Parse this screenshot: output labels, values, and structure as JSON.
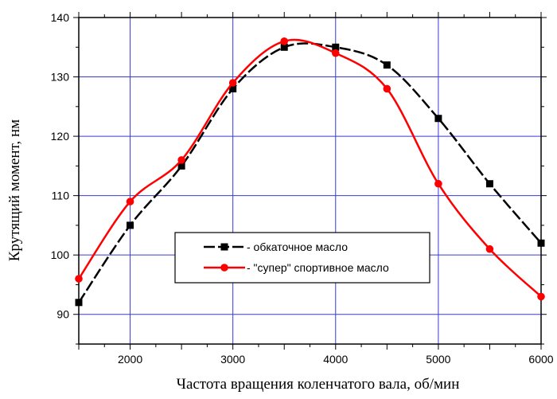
{
  "chart_data": {
    "type": "line",
    "title": "",
    "xlabel": "Частота вращения коленчатого вала, об/мин",
    "ylabel": "Крутящий момент, нм",
    "xlim": [
      1500,
      6000
    ],
    "ylim": [
      85,
      140
    ],
    "x_ticks": [
      2000,
      3000,
      4000,
      5000,
      6000
    ],
    "y_ticks": [
      90,
      100,
      110,
      120,
      130,
      140
    ],
    "grid": true,
    "legend_position": "center-bottom",
    "series": [
      {
        "name": "- обкаточное масло",
        "color": "#000000",
        "line_style": "dashed",
        "marker": "square",
        "x": [
          1500,
          2000,
          2500,
          3000,
          3500,
          4000,
          4500,
          5000,
          5500,
          6000
        ],
        "values": [
          92,
          105,
          115,
          128,
          135,
          135,
          132,
          123,
          112,
          102
        ]
      },
      {
        "name": "- \"супер\" спортивное масло",
        "color": "#ff0000",
        "line_style": "solid",
        "marker": "circle",
        "x": [
          1500,
          2000,
          2500,
          3000,
          3500,
          4000,
          4500,
          5000,
          5500,
          6000
        ],
        "values": [
          96,
          109,
          116,
          129,
          136,
          134,
          128,
          112,
          101,
          93
        ]
      }
    ]
  }
}
